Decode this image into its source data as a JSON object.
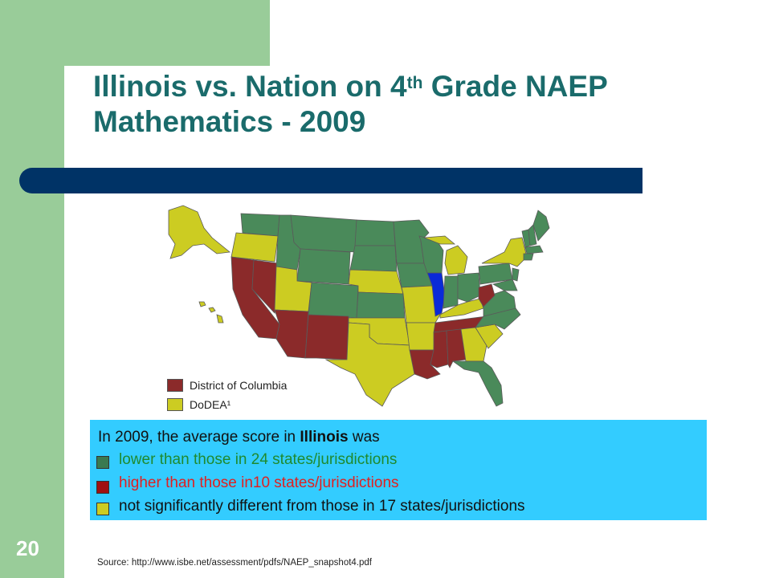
{
  "slide": {
    "title_part1": "Illinois vs. Nation on 4",
    "title_sup": "th",
    "title_part2": " Grade NAEP",
    "title_line2": "Mathematics - 2009",
    "number": "20"
  },
  "map_legend": [
    {
      "label": "District of Columbia",
      "color": "#8b2a2a"
    },
    {
      "label": "DoDEA¹",
      "color": "#cccc22"
    }
  ],
  "info": {
    "intro_prefix": "In 2009, the average score in ",
    "intro_bold": "Illinois",
    "intro_suffix": " was",
    "items": [
      {
        "text": "lower than those in 24 states/jurisdictions",
        "text_color": "#1f8a2e",
        "swatch": "#3a7a50"
      },
      {
        "text": "higher than those in10 states/jurisdictions",
        "text_color": "#e02020",
        "swatch": "#a01010"
      },
      {
        "text": "not significantly different from those in 17 states/jurisdictions",
        "text_color": "#111111",
        "swatch": "#cccc22"
      }
    ]
  },
  "source": "Source:  http://www.isbe.net/assessment/pdfs/NAEP_snapshot4.pdf",
  "colors": {
    "higher_state": "#8b2a2a",
    "lower_state": "#4a8a5a",
    "not_sig_state": "#cccc22",
    "illinois": "#0a2ad8",
    "title": "#1a6b6b",
    "info_bg": "#33ccff"
  }
}
